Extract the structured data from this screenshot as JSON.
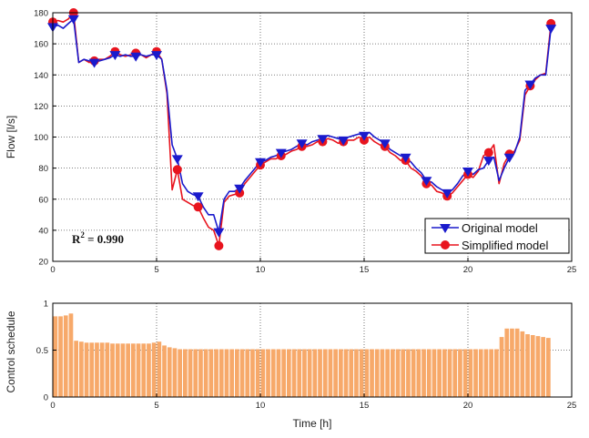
{
  "chart_data": [
    {
      "type": "line",
      "title": "",
      "xlabel": "",
      "ylabel": "Flow [l/s]",
      "xlim": [
        0,
        25
      ],
      "ylim": [
        20,
        180
      ],
      "xticks": [
        "0",
        "5",
        "10",
        "15",
        "20",
        "25"
      ],
      "yticks": [
        "20",
        "40",
        "60",
        "80",
        "100",
        "120",
        "140",
        "160",
        "180"
      ],
      "grid": true,
      "legend_position": "bottom-right",
      "annotation": {
        "prefix": "R",
        "sup": "2",
        "suffix": " = 0.990"
      },
      "series": [
        {
          "name": "Original model",
          "color": "#1a1acc",
          "marker": "triangle-down",
          "x": [
            0,
            0.25,
            0.5,
            0.75,
            1,
            1.25,
            1.5,
            1.75,
            2,
            2.25,
            2.5,
            2.75,
            3,
            3.25,
            3.5,
            3.75,
            4,
            4.25,
            4.5,
            4.75,
            5,
            5.25,
            5.5,
            5.75,
            6,
            6.25,
            6.5,
            6.75,
            7,
            7.25,
            7.5,
            7.75,
            8,
            8.25,
            8.5,
            8.75,
            9,
            9.25,
            9.5,
            9.75,
            10,
            10.25,
            10.5,
            10.75,
            11,
            11.25,
            11.5,
            11.75,
            12,
            12.25,
            12.5,
            12.75,
            13,
            13.25,
            13.5,
            13.75,
            14,
            14.25,
            14.5,
            14.75,
            15,
            15.25,
            15.5,
            15.75,
            16,
            16.25,
            16.5,
            16.75,
            17,
            17.25,
            17.5,
            17.75,
            18,
            18.25,
            18.5,
            18.75,
            19,
            19.25,
            19.5,
            19.75,
            20,
            20.25,
            20.5,
            20.75,
            21,
            21.25,
            21.5,
            21.75,
            22,
            22.25,
            22.5,
            22.75,
            23,
            23.25,
            23.5,
            23.75,
            24
          ],
          "y": [
            171,
            172,
            170,
            173,
            176,
            148,
            150,
            149,
            148,
            149,
            150,
            151,
            153,
            152,
            153,
            152,
            152,
            153,
            152,
            153,
            153,
            150,
            130,
            95,
            86,
            70,
            65,
            63,
            62,
            55,
            50,
            50,
            39,
            60,
            65,
            65,
            67,
            72,
            76,
            80,
            84,
            85,
            87,
            88,
            90,
            91,
            92,
            94,
            96,
            95,
            97,
            98,
            99,
            101,
            100,
            99,
            98,
            100,
            101,
            102,
            101,
            103,
            100,
            98,
            96,
            92,
            90,
            88,
            87,
            84,
            80,
            77,
            72,
            71,
            68,
            66,
            64,
            66,
            70,
            75,
            78,
            76,
            79,
            80,
            85,
            87,
            72,
            80,
            87,
            90,
            100,
            130,
            134,
            138,
            140,
            140,
            170
          ],
          "marker_x": [
            0,
            1,
            2,
            3,
            4,
            5,
            6,
            7,
            8,
            9,
            10,
            11,
            12,
            13,
            14,
            15,
            16,
            17,
            18,
            19,
            20,
            21,
            22,
            23,
            24
          ]
        },
        {
          "name": "Simplified model",
          "color": "#e8141e",
          "marker": "circle",
          "x": [
            0,
            0.25,
            0.5,
            0.75,
            1,
            1.25,
            1.5,
            1.75,
            2,
            2.25,
            2.5,
            2.75,
            3,
            3.25,
            3.5,
            3.75,
            4,
            4.25,
            4.5,
            4.75,
            5,
            5.25,
            5.5,
            5.75,
            6,
            6.25,
            6.5,
            6.75,
            7,
            7.25,
            7.5,
            7.75,
            8,
            8.25,
            8.5,
            8.75,
            9,
            9.25,
            9.5,
            9.75,
            10,
            10.25,
            10.5,
            10.75,
            11,
            11.25,
            11.5,
            11.75,
            12,
            12.25,
            12.5,
            12.75,
            13,
            13.25,
            13.5,
            13.75,
            14,
            14.25,
            14.5,
            14.75,
            15,
            15.25,
            15.5,
            15.75,
            16,
            16.25,
            16.5,
            16.75,
            17,
            17.25,
            17.5,
            17.75,
            18,
            18.25,
            18.5,
            18.75,
            19,
            19.25,
            19.5,
            19.75,
            20,
            20.25,
            20.5,
            20.75,
            21,
            21.25,
            21.5,
            21.75,
            22,
            22.25,
            22.5,
            22.75,
            23,
            23.25,
            23.5,
            23.75,
            24
          ],
          "y": [
            174,
            175,
            174,
            176,
            180,
            148,
            150,
            148,
            149,
            150,
            150,
            152,
            155,
            153,
            152,
            153,
            154,
            153,
            151,
            153,
            155,
            150,
            128,
            66,
            79,
            60,
            58,
            56,
            55,
            48,
            42,
            40,
            30,
            58,
            62,
            63,
            64,
            70,
            74,
            78,
            82,
            84,
            86,
            86,
            88,
            89,
            91,
            92,
            94,
            94,
            95,
            97,
            97,
            99,
            98,
            96,
            97,
            98,
            98,
            100,
            98,
            100,
            97,
            95,
            94,
            90,
            88,
            85,
            85,
            80,
            78,
            75,
            70,
            69,
            65,
            64,
            62,
            64,
            68,
            72,
            76,
            74,
            78,
            88,
            90,
            95,
            70,
            83,
            89,
            91,
            98,
            127,
            133,
            137,
            140,
            141,
            173
          ],
          "marker_x": [
            0,
            1,
            2,
            3,
            4,
            5,
            6,
            7,
            8,
            9,
            10,
            11,
            12,
            13,
            14,
            15,
            16,
            17,
            18,
            19,
            20,
            21,
            22,
            23,
            24
          ]
        }
      ]
    },
    {
      "type": "bar",
      "title": "",
      "xlabel": "Time [h]",
      "ylabel": "Control schedule",
      "xlim": [
        0,
        25
      ],
      "ylim": [
        0,
        1
      ],
      "xticks": [
        "0",
        "5",
        "10",
        "15",
        "20",
        "25"
      ],
      "yticks": [
        "0",
        "0.5",
        "1"
      ],
      "grid": true,
      "bar_color": "#f7a96a",
      "bar_step": 0.25,
      "values": [
        0.86,
        0.86,
        0.87,
        0.89,
        0.6,
        0.59,
        0.58,
        0.58,
        0.58,
        0.58,
        0.58,
        0.57,
        0.57,
        0.57,
        0.57,
        0.57,
        0.57,
        0.57,
        0.57,
        0.58,
        0.59,
        0.55,
        0.53,
        0.52,
        0.51,
        0.51,
        0.51,
        0.51,
        0.51,
        0.51,
        0.51,
        0.51,
        0.51,
        0.51,
        0.51,
        0.51,
        0.51,
        0.51,
        0.51,
        0.51,
        0.51,
        0.51,
        0.51,
        0.51,
        0.51,
        0.51,
        0.51,
        0.51,
        0.51,
        0.51,
        0.51,
        0.51,
        0.51,
        0.51,
        0.51,
        0.51,
        0.51,
        0.51,
        0.51,
        0.51,
        0.51,
        0.51,
        0.51,
        0.51,
        0.51,
        0.51,
        0.51,
        0.51,
        0.51,
        0.51,
        0.51,
        0.51,
        0.51,
        0.51,
        0.51,
        0.51,
        0.51,
        0.51,
        0.51,
        0.51,
        0.51,
        0.51,
        0.51,
        0.51,
        0.51,
        0.51,
        0.64,
        0.73,
        0.73,
        0.73,
        0.7,
        0.67,
        0.66,
        0.65,
        0.64,
        0.63
      ]
    }
  ]
}
